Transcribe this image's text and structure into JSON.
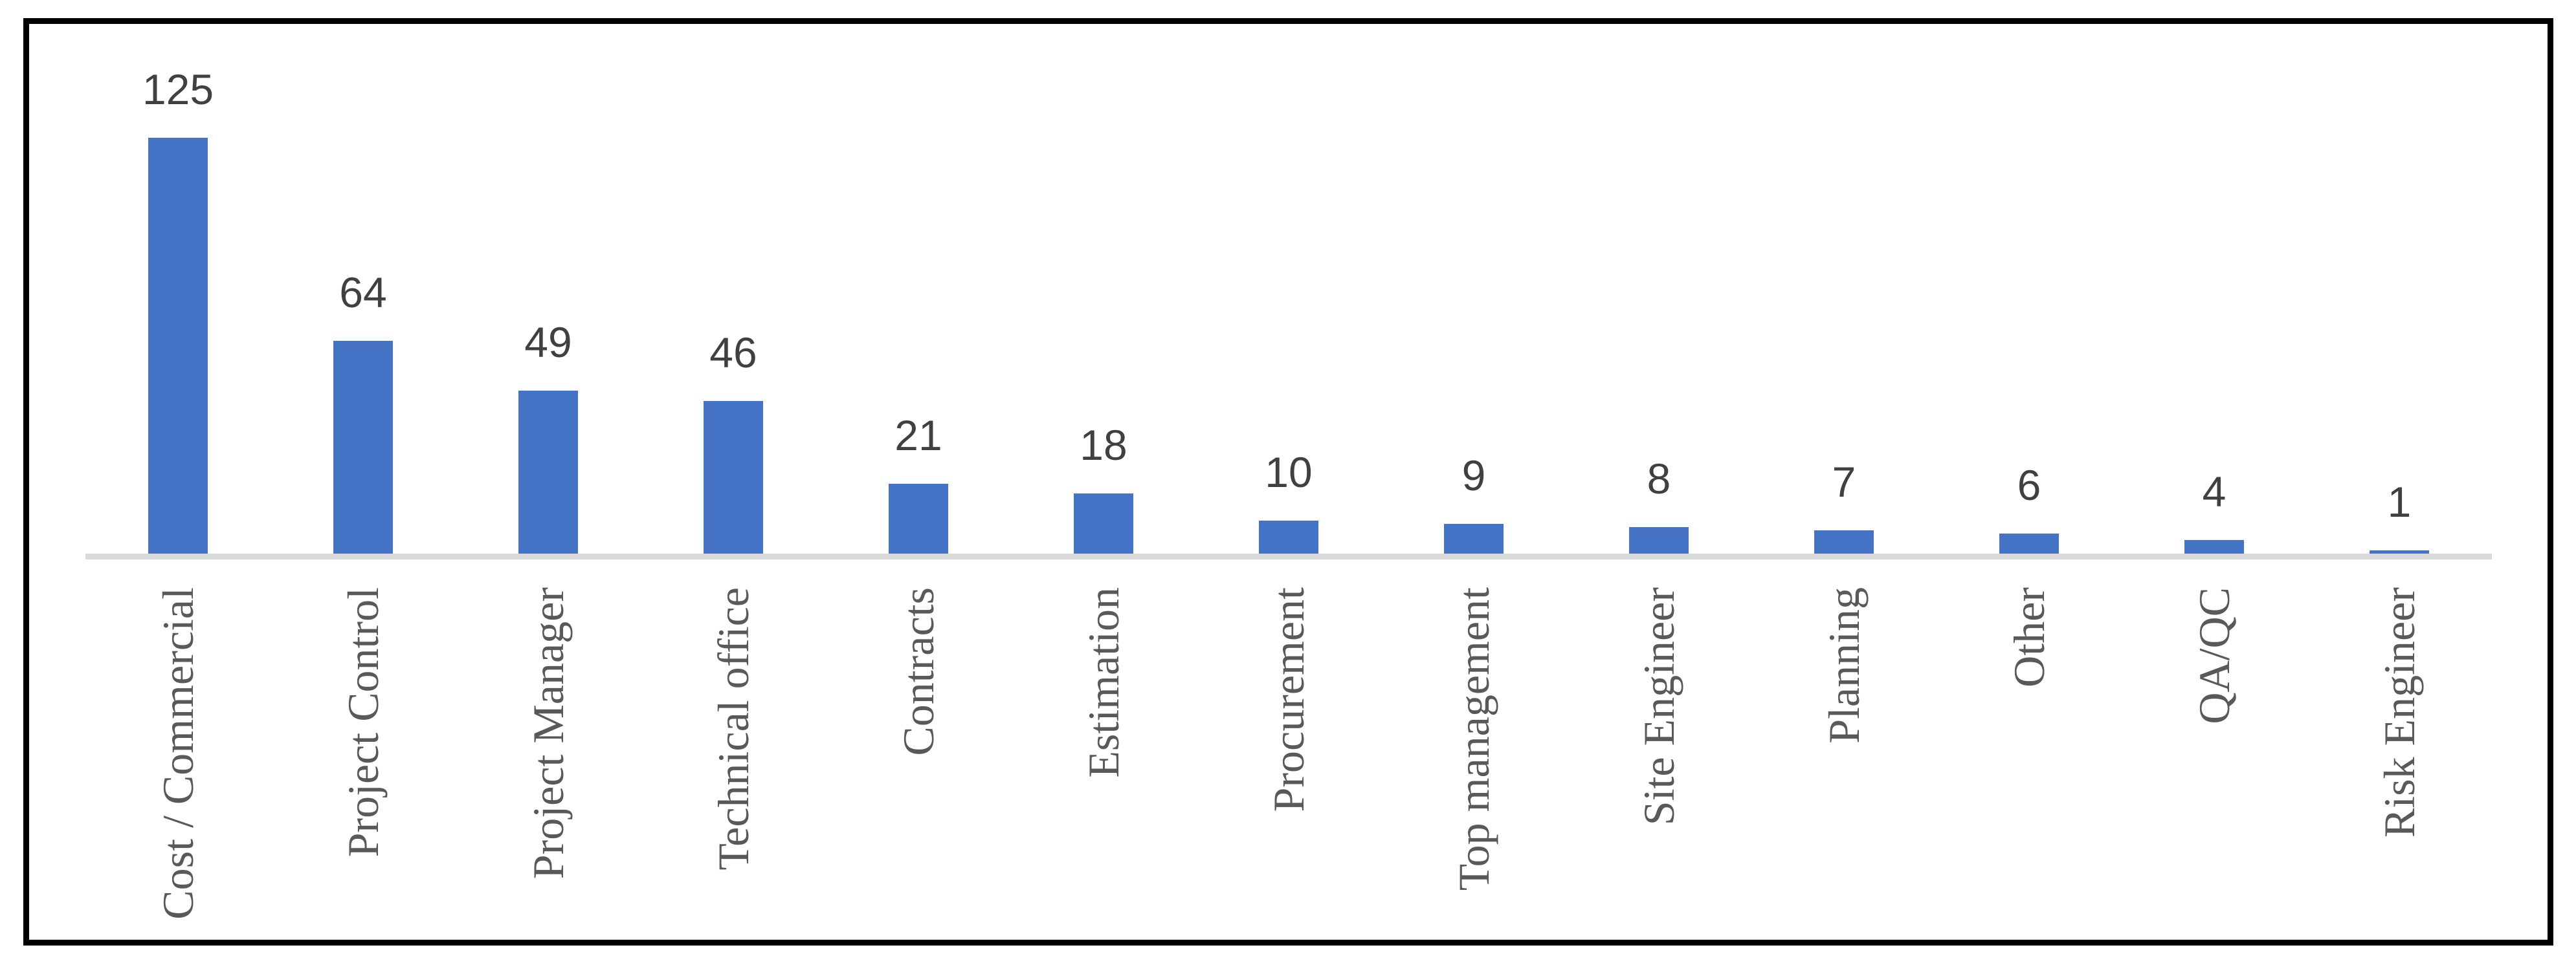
{
  "chart_data": {
    "type": "bar",
    "title": "",
    "xlabel": "",
    "ylabel": "",
    "categories": [
      "Cost / Commercial",
      "Project Control",
      "Project Manager",
      "Technical office",
      "Contracts",
      "Estimation",
      "Procurement",
      "Top management",
      "Site Engineer",
      "Planning",
      "Other",
      "QA/QC",
      "Risk Engineer"
    ],
    "values": [
      125,
      64,
      49,
      46,
      21,
      18,
      10,
      9,
      8,
      7,
      6,
      4,
      1
    ],
    "value_labels_shown": true,
    "legend": "none",
    "grid": false,
    "ylim": [
      0,
      130
    ],
    "bar_color": "#4472C4",
    "value_label_color": "#404040",
    "category_label_color": "#595959",
    "axis_line_color": "#D9D9D9",
    "frame_border_color": "#000000",
    "background_color": "#FFFFFF"
  }
}
